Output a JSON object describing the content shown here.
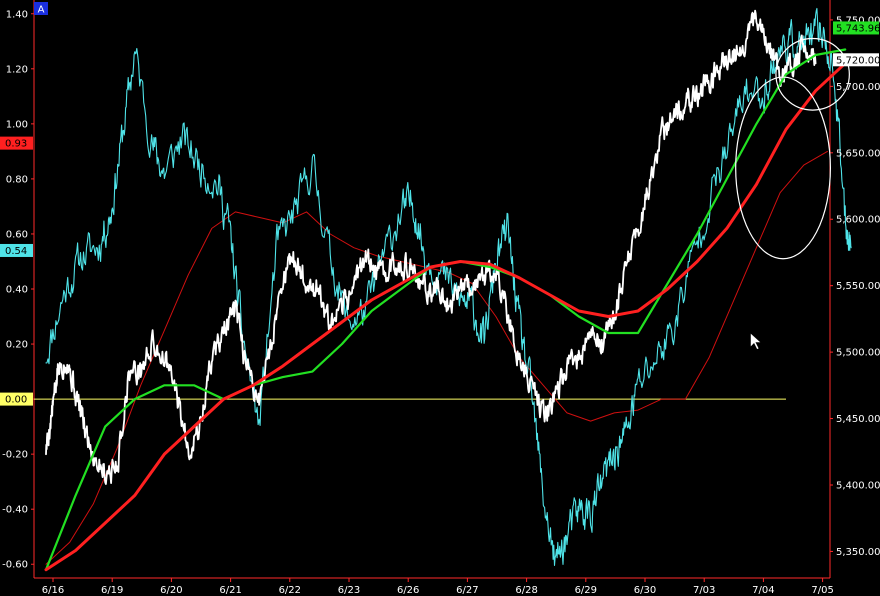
{
  "panel_label": "A",
  "colors": {
    "background": "#000000",
    "axis": "#ff2a2a",
    "zero_line": "#ffff66",
    "white_series": "#ffffff",
    "cyan_series": "#4fe3e8",
    "green_ma": "#22e022",
    "red_ma": "#ff2020",
    "red_band": "#d01010",
    "tick_label": "#ffffff",
    "annotation": "#ffffff"
  },
  "chart_data": {
    "type": "line",
    "x_ticks": [
      "6/16",
      "6/19",
      "6/20",
      "6/21",
      "6/22",
      "6/23",
      "6/26",
      "6/27",
      "6/28",
      "6/29",
      "6/30",
      "7/03",
      "7/04",
      "7/05"
    ],
    "left_axis": {
      "ylim": [
        -0.65,
        1.45
      ],
      "ticks": [
        "1.40",
        "1.20",
        "1.00",
        "0.80",
        "0.60",
        "0.40",
        "0.20",
        "0.00",
        "-0.20",
        "-0.40",
        "-0.60"
      ],
      "tick_values": [
        1.4,
        1.2,
        1.0,
        0.8,
        0.6,
        0.4,
        0.2,
        0.0,
        -0.2,
        -0.4,
        -0.6
      ]
    },
    "right_axis": {
      "ylim": [
        5330,
        5765
      ],
      "ticks": [
        "5,750.00",
        "5,700.00",
        "5,650.00",
        "5,600.00",
        "5,550.00",
        "5,500.00",
        "5,450.00",
        "5,400.00",
        "5,350.00"
      ],
      "tick_values": [
        5750,
        5700,
        5650,
        5600,
        5550,
        5500,
        5450,
        5400,
        5350
      ]
    },
    "left_badges": [
      {
        "label": "0.93",
        "value": 0.93,
        "bg": "#ff2020",
        "fg": "#000000"
      },
      {
        "label": "0.54",
        "value": 0.54,
        "bg": "#4fe3e8",
        "fg": "#000000"
      },
      {
        "label": "0.00",
        "value": 0.0,
        "bg": "#ffff66",
        "fg": "#000000"
      }
    ],
    "right_badges": [
      {
        "label": "5,743.96",
        "value": 5743.96,
        "bg": "#22e022",
        "fg": "#000000"
      },
      {
        "label": "5,720.00",
        "value": 5720.0,
        "bg": "#ffffff",
        "fg": "#000000"
      }
    ],
    "zero_line": 0.0,
    "series": [
      {
        "key": "cyan",
        "axis": "left",
        "width": 1.1,
        "x": [
          0,
          0.3,
          0.6,
          0.9,
          1.1,
          1.3,
          1.5,
          1.8,
          2,
          2.3,
          2.6,
          2.9,
          3.1,
          3.3,
          3.6,
          3.9,
          4.2,
          4.5,
          4.8,
          5.1,
          5.4,
          5.7,
          6,
          6.2,
          6.4,
          6.7,
          7,
          7.2,
          7.4,
          7.6,
          7.8,
          8,
          8.2,
          8.4,
          8.6,
          8.8,
          9,
          9.2,
          9.4,
          9.6,
          9.8,
          10,
          10.3,
          10.6,
          10.9,
          11.2,
          11.5,
          11.8,
          12.1,
          12.3,
          12.5,
          12.7,
          12.9,
          13.1,
          13.3,
          13.5,
          13.6
        ],
        "y": [
          0.16,
          0.38,
          0.52,
          0.56,
          0.68,
          0.97,
          1.26,
          0.92,
          0.82,
          0.95,
          0.85,
          0.78,
          0.62,
          0.26,
          -0.1,
          0.56,
          0.68,
          0.85,
          0.52,
          0.28,
          0.32,
          0.52,
          0.68,
          0.72,
          0.52,
          0.45,
          0.36,
          0.34,
          0.2,
          0.5,
          0.62,
          0.26,
          0.02,
          -0.35,
          -0.6,
          -0.5,
          -0.4,
          -0.42,
          -0.3,
          -0.2,
          -0.12,
          0.05,
          0.15,
          0.26,
          0.5,
          0.72,
          0.9,
          1.12,
          1.1,
          1.22,
          1.3,
          1.28,
          1.3,
          1.35,
          1.2,
          0.66,
          0.55
        ],
        "noise": 0.05,
        "seed": 11
      },
      {
        "key": "white",
        "axis": "left",
        "width": 1.8,
        "x": [
          0,
          0.1,
          0.2,
          0.35,
          0.5,
          0.65,
          0.8,
          1.0,
          1.2,
          1.4,
          1.6,
          1.8,
          2.0,
          2.2,
          2.4,
          2.6,
          2.8,
          3.0,
          3.2,
          3.4,
          3.6,
          3.8,
          4.0,
          4.2,
          4.4,
          4.6,
          4.8,
          5.0,
          5.2,
          5.4,
          5.6,
          5.8,
          6.0,
          6.2,
          6.4,
          6.6,
          6.8,
          7.0,
          7.2,
          7.4,
          7.6,
          7.8,
          8.0,
          8.2,
          8.4,
          8.6,
          8.8,
          9.0,
          9.2,
          9.4,
          9.6,
          9.8,
          10.0,
          10.2,
          10.4,
          10.6,
          10.8,
          11.0,
          11.2,
          11.4,
          11.6,
          11.8,
          12.0,
          12.2,
          12.4,
          12.6,
          12.8,
          13.0
        ],
        "y": [
          -0.18,
          -0.05,
          0.1,
          0.15,
          0.02,
          -0.1,
          -0.2,
          -0.26,
          -0.25,
          0.1,
          0.1,
          0.2,
          0.15,
          0.02,
          -0.18,
          -0.1,
          0.15,
          0.25,
          0.32,
          0.1,
          0.0,
          0.2,
          0.45,
          0.5,
          0.42,
          0.4,
          0.25,
          0.32,
          0.42,
          0.52,
          0.45,
          0.48,
          0.5,
          0.45,
          0.4,
          0.4,
          0.34,
          0.42,
          0.42,
          0.45,
          0.48,
          0.3,
          0.15,
          0.05,
          -0.05,
          0.0,
          0.1,
          0.15,
          0.22,
          0.2,
          0.3,
          0.48,
          0.62,
          0.78,
          0.96,
          1.02,
          1.08,
          1.1,
          1.15,
          1.22,
          1.25,
          1.3,
          1.38,
          1.28,
          1.18,
          1.2,
          1.3,
          1.22
        ],
        "noise": 0.035,
        "seed": 5
      },
      {
        "key": "green",
        "axis": "left",
        "width": 2.2,
        "x": [
          0,
          0.5,
          1,
          1.5,
          2,
          2.5,
          3,
          3.5,
          4,
          4.5,
          5,
          5.5,
          6,
          6.5,
          7,
          7.5,
          8,
          8.5,
          9,
          9.5,
          10,
          10.5,
          11,
          11.5,
          12,
          12.5,
          13,
          13.5
        ],
        "y": [
          -0.62,
          -0.35,
          -0.1,
          0.0,
          0.05,
          0.05,
          0.0,
          0.05,
          0.08,
          0.1,
          0.2,
          0.32,
          0.4,
          0.48,
          0.5,
          0.48,
          0.44,
          0.38,
          0.3,
          0.24,
          0.24,
          0.42,
          0.6,
          0.8,
          1.0,
          1.18,
          1.25,
          1.27
        ],
        "noise": 0,
        "seed": 1
      },
      {
        "key": "red",
        "axis": "left",
        "width": 3.0,
        "x": [
          0,
          0.5,
          1,
          1.5,
          2,
          2.5,
          3,
          3.5,
          4,
          4.5,
          5,
          5.5,
          6,
          6.5,
          7,
          7.5,
          8,
          8.5,
          9,
          9.5,
          10,
          10.5,
          11,
          11.5,
          12,
          12.5,
          13,
          13.5
        ],
        "y": [
          -0.62,
          -0.55,
          -0.45,
          -0.35,
          -0.2,
          -0.1,
          0.0,
          0.05,
          0.12,
          0.2,
          0.28,
          0.36,
          0.42,
          0.48,
          0.5,
          0.49,
          0.44,
          0.38,
          0.32,
          0.3,
          0.32,
          0.4,
          0.5,
          0.62,
          0.78,
          0.98,
          1.12,
          1.22
        ],
        "noise": 0,
        "seed": 1
      },
      {
        "key": "redthin",
        "axis": "left",
        "width": 1.0,
        "x": [
          0,
          0.4,
          0.8,
          1.2,
          1.6,
          2,
          2.4,
          2.8,
          3.2,
          3.6,
          4,
          4.4,
          4.8,
          5.2,
          5.6,
          6,
          6.4,
          6.8,
          7.2,
          7.6,
          8,
          8.4,
          8.8,
          9.2,
          9.6,
          10,
          10.4,
          10.8,
          11.2,
          11.6,
          12,
          12.4,
          12.8,
          13.2
        ],
        "y": [
          -0.6,
          -0.52,
          -0.38,
          -0.18,
          0.05,
          0.25,
          0.45,
          0.62,
          0.68,
          0.66,
          0.64,
          0.68,
          0.6,
          0.55,
          0.52,
          0.5,
          0.48,
          0.46,
          0.42,
          0.3,
          0.15,
          0.05,
          -0.05,
          -0.08,
          -0.05,
          -0.04,
          0.0,
          0.0,
          0.15,
          0.35,
          0.55,
          0.75,
          0.85,
          0.9
        ],
        "noise": 0,
        "seed": 1
      }
    ],
    "annotations": [
      {
        "type": "ellipse",
        "x": 12.95,
        "y": 1.18,
        "rx_days": 0.62,
        "ry": 0.13
      },
      {
        "type": "ellipse",
        "x": 12.45,
        "y": 0.84,
        "rx_days": 0.8,
        "ry": 0.33
      },
      {
        "type": "cursor",
        "x": 11.9,
        "y": 0.24
      }
    ]
  }
}
